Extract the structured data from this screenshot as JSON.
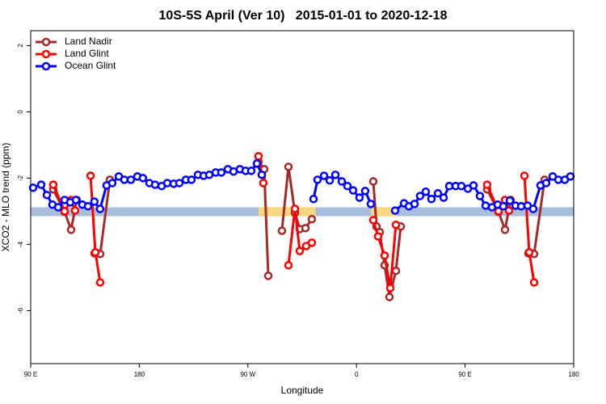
{
  "chart_data": {
    "type": "line",
    "title": "10S-5S April (Ver 10)   2015-01-01 to 2020-12-18",
    "xlabel": "Longitude",
    "ylabel": "XCO2 - MLO trend (ppm)",
    "xlim": [
      90,
      540
    ],
    "xticks": [
      {
        "value": 90,
        "label": "90 E"
      },
      {
        "value": 180,
        "label": "180"
      },
      {
        "value": 270,
        "label": "90 W"
      },
      {
        "value": 360,
        "label": "0"
      },
      {
        "value": 450,
        "label": "90 E"
      },
      {
        "value": 540,
        "label": "180"
      }
    ],
    "ylim": [
      -7.6,
      2.45
    ],
    "yticks": [
      -6,
      -4,
      -2,
      0,
      2
    ],
    "legend": "top-left",
    "band": {
      "y": [
        -3.15,
        -2.88
      ],
      "color": "#a7bfdc"
    },
    "highlights": {
      "color": "#f9d77e",
      "x": [
        [
          279,
          326
        ],
        [
          372,
          393
        ]
      ]
    },
    "series": [
      {
        "name": "Land Nadir",
        "color": "#a52a2a",
        "x": [
          108.7,
          118.1,
          123.5,
          128.2,
          null,
          142.9,
          147.6,
          155.6,
          null,
          278.8,
          283.5,
          286.9,
          null,
          298.2,
          303.6,
          309.0,
          313.0,
          317.7,
          323.0,
          null,
          373.9,
          376.6,
          379.3,
          383.3,
          387.3,
          392.7,
          396.7,
          null,
          468.3,
          477.7,
          483.1,
          487.8,
          null,
          502.5,
          507.2,
          515.9
        ],
        "values": [
          -2.34,
          -3.02,
          -3.56,
          -2.66,
          null,
          -4.27,
          -4.29,
          -2.05,
          null,
          -1.51,
          -1.73,
          -4.95,
          null,
          -3.59,
          -1.66,
          -3.05,
          -3.54,
          -3.51,
          -3.24,
          null,
          -2.1,
          -3.46,
          -3.63,
          -4.63,
          -5.59,
          -4.8,
          -3.46,
          null,
          -2.34,
          -3.02,
          -3.56,
          -2.66,
          null,
          -4.27,
          -4.29,
          -2.05
        ]
      },
      {
        "name": "Land Glint",
        "color": "#ff0000",
        "x": [
          108.7,
          118.1,
          123.5,
          126.8,
          null,
          139.6,
          143.6,
          147.6,
          null,
          278.8,
          282.8,
          null,
          303.6,
          309.0,
          313.0,
          318.3,
          323.0,
          null,
          373.9,
          377.9,
          383.3,
          388.0,
          392.7,
          null,
          468.3,
          477.7,
          483.1,
          486.4,
          null,
          499.2,
          503.2,
          507.2
        ],
        "values": [
          -2.2,
          -3.0,
          -2.66,
          -2.98,
          null,
          -1.93,
          -4.24,
          -5.15,
          null,
          -1.34,
          -2.15,
          null,
          -4.63,
          -2.93,
          -4.2,
          -4.05,
          -3.95,
          null,
          -3.27,
          -3.76,
          -4.34,
          -5.32,
          -3.41,
          null,
          -2.2,
          -3.0,
          -2.66,
          -2.98,
          null,
          -1.93,
          -4.24,
          -5.15
        ]
      },
      {
        "name": "Ocean Glint",
        "color": "#0000ff",
        "x": [
          92.0,
          98.7,
          103.4,
          108.0,
          112.8,
          118.1,
          122.8,
          127.5,
          132.8,
          137.5,
          142.8,
          147.5,
          152.9,
          157.6,
          163.0,
          167.6,
          173.0,
          178.4,
          183.0,
          188.4,
          193.1,
          198.5,
          203.2,
          208.5,
          213.2,
          218.6,
          223.2,
          228.6,
          233.3,
          238.0,
          243.3,
          248.0,
          253.4,
          258.1,
          263.4,
          268.1,
          272.8,
          277.5,
          281.5,
          null,
          324.4,
          327.7,
          333.1,
          337.8,
          342.5,
          347.8,
          352.5,
          357.2,
          362.5,
          367.2,
          371.9,
          null,
          392.0,
          399.4,
          403.4,
          408.1,
          412.7,
          417.4,
          422.1,
          427.5,
          432.2,
          436.9,
          442.2,
          446.9,
          452.3,
          457.0,
          462.3,
          467.0,
          472.3,
          477.0,
          481.7,
          487.1,
          491.8,
          496.5,
          501.8,
          506.5,
          512.5,
          517.2,
          522.6,
          527.3,
          532.6,
          537.3
        ],
        "values": [
          -2.29,
          -2.2,
          -2.51,
          -2.8,
          -2.88,
          -2.66,
          -2.73,
          -2.66,
          -2.8,
          -2.85,
          -2.71,
          -2.93,
          -2.22,
          -2.15,
          -1.95,
          -2.05,
          -2.05,
          -1.95,
          -2.0,
          -2.15,
          -2.2,
          -2.24,
          -2.15,
          -2.17,
          -2.15,
          -2.05,
          -2.05,
          -1.9,
          -1.93,
          -1.9,
          -1.83,
          -1.83,
          -1.73,
          -1.8,
          -1.73,
          -1.78,
          -1.78,
          -1.56,
          -1.9,
          null,
          -2.63,
          -2.05,
          -1.93,
          -2.07,
          -1.9,
          -2.1,
          -2.24,
          -2.37,
          -2.59,
          -2.39,
          -2.78,
          null,
          -2.98,
          -2.76,
          -2.85,
          -2.78,
          -2.54,
          -2.41,
          -2.63,
          -2.46,
          -2.59,
          -2.24,
          -2.24,
          -2.24,
          -2.32,
          -2.22,
          -2.54,
          -2.83,
          -2.88,
          -2.8,
          -2.85,
          -2.68,
          -2.83,
          -2.85,
          -2.83,
          -2.93,
          -2.22,
          -2.15,
          -1.95,
          -2.05,
          -2.05,
          -1.95
        ]
      }
    ]
  }
}
